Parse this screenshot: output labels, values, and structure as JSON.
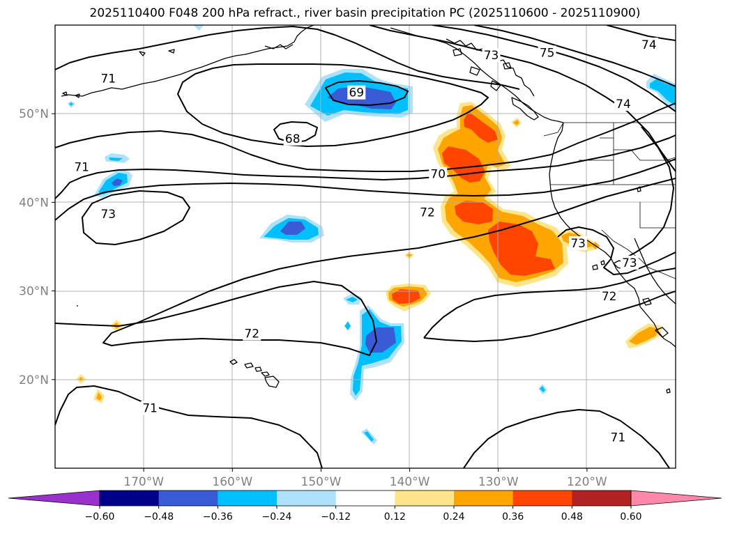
{
  "title": "2025110400 F048 200 hPa refract., river basin precipitation PC (2025110600 - 2025110900)",
  "map": {
    "lon_range": [
      -180,
      -110
    ],
    "lat_range": [
      10,
      60
    ],
    "longitude_ticks": [
      {
        "value": -170,
        "label": "170°W"
      },
      {
        "value": -160,
        "label": "160°W"
      },
      {
        "value": -150,
        "label": "150°W"
      },
      {
        "value": -140,
        "label": "140°W"
      },
      {
        "value": -130,
        "label": "130°W"
      },
      {
        "value": -120,
        "label": "120°W"
      }
    ],
    "latitude_ticks": [
      {
        "value": 50,
        "label": "50°N"
      },
      {
        "value": 40,
        "label": "40°N"
      },
      {
        "value": 30,
        "label": "30°N"
      },
      {
        "value": 20,
        "label": "20°N"
      }
    ],
    "contour_labels": [
      {
        "text": "71",
        "lon": -174,
        "lat": 54
      },
      {
        "text": "69",
        "lon": -146,
        "lat": 52.4
      },
      {
        "text": "68",
        "lon": -153.2,
        "lat": 47.2
      },
      {
        "text": "73",
        "lon": -130.8,
        "lat": 56.6
      },
      {
        "text": "75",
        "lon": -124.5,
        "lat": 56.9
      },
      {
        "text": "74",
        "lon": -113,
        "lat": 57.8
      },
      {
        "text": "74",
        "lon": -115.9,
        "lat": 51.1
      },
      {
        "text": "71",
        "lon": -177,
        "lat": 44
      },
      {
        "text": "70",
        "lon": -136.8,
        "lat": 43.2
      },
      {
        "text": "73",
        "lon": -174,
        "lat": 38.7
      },
      {
        "text": "72",
        "lon": -138,
        "lat": 38.9
      },
      {
        "text": "73",
        "lon": -121,
        "lat": 35.4
      },
      {
        "text": "73",
        "lon": -115.2,
        "lat": 33.2
      },
      {
        "text": "72",
        "lon": -117.5,
        "lat": 29.4
      },
      {
        "text": "72",
        "lon": -157.8,
        "lat": 25.2
      },
      {
        "text": "71",
        "lon": -169.3,
        "lat": 16.8
      },
      {
        "text": "71",
        "lon": -116.5,
        "lat": 13.5
      }
    ]
  },
  "colorbar": {
    "bounds": [
      -0.6,
      -0.48,
      -0.36,
      -0.24,
      -0.12,
      0.12,
      0.24,
      0.36,
      0.48,
      0.6
    ],
    "tick_labels": [
      "−0.60",
      "−0.48",
      "−0.36",
      "−0.24",
      "−0.12",
      "0.12",
      "0.24",
      "0.36",
      "0.48",
      "0.60"
    ],
    "colors": [
      "#9932cc",
      "#00008b",
      "#3a5bd6",
      "#00bfff",
      "#aee2fb",
      "#ffffff",
      "#ffe58a",
      "#ffa500",
      "#ff4500",
      "#b22222",
      "#ff88aa"
    ],
    "extend": "both"
  }
}
